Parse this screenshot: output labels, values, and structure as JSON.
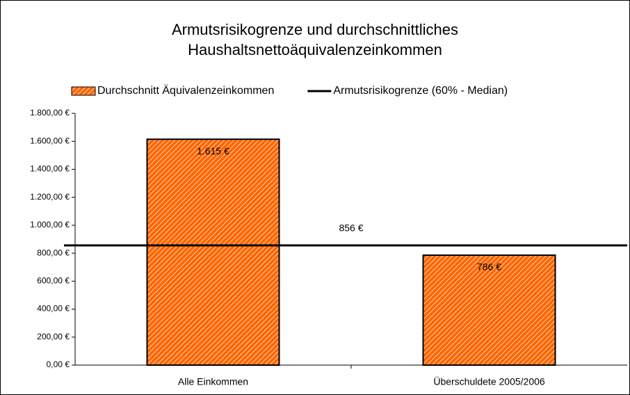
{
  "chart_data": {
    "type": "bar",
    "title": "Armutsrisikogrenze und durchschnittliches Haushaltsnettoäquivalenzeinkommen",
    "categories": [
      "Alle Einkommen",
      "Überschuldete 2005/2006"
    ],
    "series": [
      {
        "name": "Durchschnitt Äquivalenzeinkommen",
        "type": "bar",
        "color": "#ff6600",
        "hatch": true,
        "values": [
          1615,
          786
        ],
        "value_labels": [
          "1.615 €",
          "786 €"
        ]
      },
      {
        "name": "Armutsrisikogrenze (60% - Median)",
        "type": "line",
        "color": "#000000",
        "value": 856,
        "value_label": "856 €"
      }
    ],
    "ylim": [
      0,
      1800
    ],
    "yticks": [
      {
        "value": 0,
        "label": "0,00 €"
      },
      {
        "value": 200,
        "label": "200,00 €"
      },
      {
        "value": 400,
        "label": "400,00 €"
      },
      {
        "value": 600,
        "label": "600,00 €"
      },
      {
        "value": 800,
        "label": "800,00 €"
      },
      {
        "value": 1000,
        "label": "1.000,00 €"
      },
      {
        "value": 1200,
        "label": "1.200,00 €"
      },
      {
        "value": 1400,
        "label": "1.400,00 €"
      },
      {
        "value": 1600,
        "label": "1.600,00 €"
      },
      {
        "value": 1800,
        "label": "1.800,00 €"
      }
    ],
    "grid": false,
    "legend": "top"
  }
}
